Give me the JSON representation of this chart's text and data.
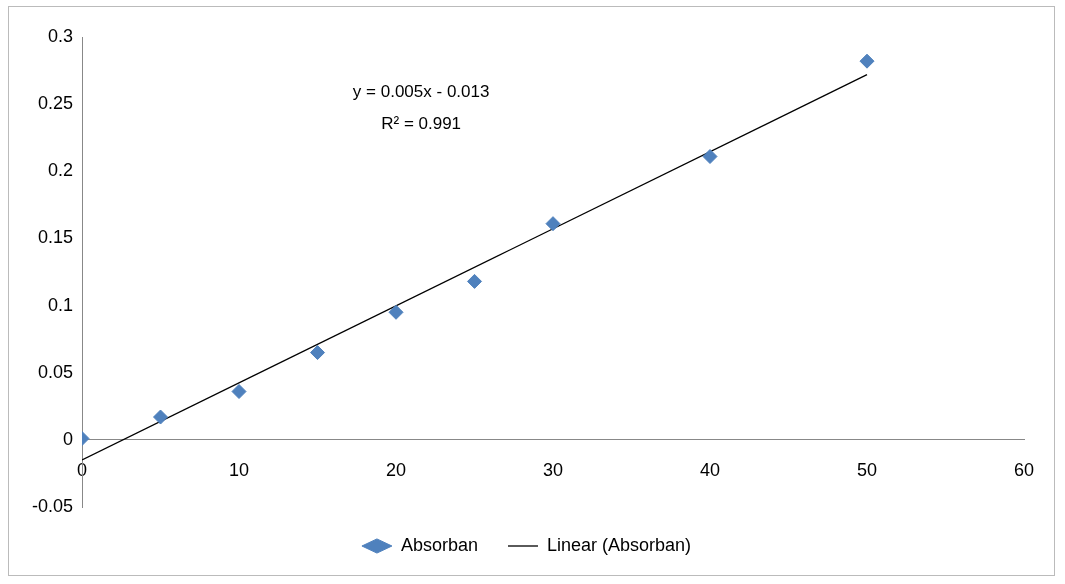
{
  "chart_data": {
    "type": "scatter",
    "x": [
      0,
      5,
      10,
      15,
      20,
      25,
      30,
      40,
      50
    ],
    "series": [
      {
        "name": "Absorban",
        "marker": "diamond",
        "color": "#4f81bd",
        "values": [
          0.001,
          0.017,
          0.036,
          0.065,
          0.095,
          0.118,
          0.161,
          0.211,
          0.282
        ]
      },
      {
        "name": "Linear (Absorban)",
        "type": "line",
        "marker": "none",
        "color": "#000000",
        "x": [
          0,
          50
        ],
        "values": [
          -0.015,
          0.272
        ]
      }
    ],
    "annotations": [
      "y = 0.005x - 0.013",
      "R² = 0.991"
    ],
    "xlim": [
      0,
      60
    ],
    "xticks": [
      0,
      10,
      20,
      30,
      40,
      50,
      60
    ],
    "ylim": [
      -0.05,
      0.3
    ],
    "yticks": [
      -0.05,
      0,
      0.05,
      0.1,
      0.15,
      0.2,
      0.25,
      0.3
    ],
    "grid": false,
    "legend": "bottom"
  }
}
